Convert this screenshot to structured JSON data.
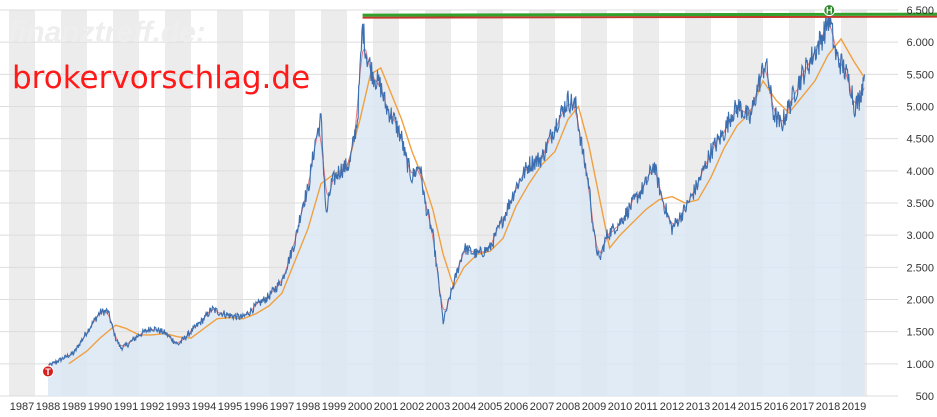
{
  "watermark": "finanztreff.de:",
  "brand": "brokervorschlag.de",
  "marker_high": "H",
  "marker_low": "T",
  "colors": {
    "price_line": "#3b6fb0",
    "short_ma": "#e0606a",
    "long_ma": "#f0a040",
    "area_fill": "#dce8f4",
    "band": "#ececec",
    "high_line": "#33a02c",
    "high_line_shadow": "#c0392b",
    "high_marker": "#2d8a2d",
    "low_marker": "#d62020",
    "brand_text": "#ff1a1a",
    "watermark": "#e6e6e6"
  },
  "chart_data": {
    "type": "line",
    "title": "",
    "xlabel": "",
    "ylabel": "",
    "x_range": [
      1988.0,
      2019.4
    ],
    "ylim": [
      500,
      6500
    ],
    "year_ticks": [
      "1987",
      "1988",
      "1989",
      "1990",
      "1991",
      "1992",
      "1993",
      "1994",
      "1995",
      "1996",
      "1997",
      "1998",
      "1999",
      "2000",
      "2001",
      "2002",
      "2003",
      "2004",
      "2005",
      "2006",
      "2007",
      "2008",
      "2009",
      "2010",
      "2011",
      "2012",
      "2013",
      "2014",
      "2015",
      "2016",
      "2017",
      "2018",
      "2019"
    ],
    "y_ticks": [
      "500",
      "1.000",
      "1.500",
      "2.000",
      "2.500",
      "3.000",
      "3.500",
      "4.000",
      "4.500",
      "5.000",
      "5.500",
      "6.000",
      "6.500"
    ],
    "y_tick_values": [
      500,
      1000,
      1500,
      2000,
      2500,
      3000,
      3500,
      4000,
      4500,
      5000,
      5500,
      6000,
      6500
    ],
    "grid": true,
    "series": [
      {
        "name": "",
        "x": [
          1988.0,
          1988.5,
          1989.0,
          1989.5,
          1990.0,
          1990.3,
          1990.6,
          1990.8,
          1991.0,
          1991.5,
          1992.0,
          1992.5,
          1993.0,
          1993.5,
          1994.0,
          1994.3,
          1994.6,
          1995.0,
          1995.5,
          1996.0,
          1996.5,
          1997.0,
          1997.5,
          1997.8,
          1998.0,
          1998.3,
          1998.5,
          1998.7,
          1998.9,
          1999.2,
          1999.6,
          1999.9,
          2000.1,
          2000.25,
          2000.5,
          2000.8,
          2001.0,
          2001.3,
          2001.6,
          2001.75,
          2002.0,
          2002.3,
          2002.5,
          2002.8,
          2003.0,
          2003.2,
          2003.5,
          2004.0,
          2004.5,
          2005.0,
          2005.5,
          2006.0,
          2006.5,
          2007.0,
          2007.5,
          2008.0,
          2008.3,
          2008.6,
          2008.8,
          2009.0,
          2009.2,
          2009.5,
          2010.0,
          2010.5,
          2011.0,
          2011.3,
          2011.6,
          2012.0,
          2012.5,
          2013.0,
          2013.5,
          2014.0,
          2014.3,
          2014.6,
          2015.0,
          2015.3,
          2015.6,
          2015.9,
          2016.2,
          2016.5,
          2016.9,
          2017.3,
          2017.8,
          2018.05,
          2018.3,
          2018.6,
          2018.9,
          2019.0,
          2019.2,
          2019.4
        ],
        "y": [
          960,
          1070,
          1170,
          1500,
          1800,
          1820,
          1400,
          1250,
          1280,
          1450,
          1560,
          1480,
          1300,
          1500,
          1700,
          1850,
          1800,
          1750,
          1720,
          1900,
          2050,
          2300,
          2900,
          3500,
          3700,
          4500,
          4800,
          3300,
          3800,
          4000,
          4100,
          4800,
          6250,
          5800,
          5500,
          5300,
          5000,
          4800,
          4500,
          4200,
          3900,
          4100,
          3500,
          3000,
          2350,
          1650,
          2100,
          2800,
          2700,
          2800,
          3250,
          3750,
          4100,
          4200,
          4700,
          5100,
          5000,
          4200,
          3800,
          3000,
          2600,
          3000,
          3200,
          3500,
          3800,
          4100,
          3600,
          3100,
          3400,
          3800,
          4300,
          4600,
          4900,
          5000,
          4800,
          5300,
          5700,
          4900,
          4700,
          5000,
          5400,
          5700,
          6100,
          6400,
          5800,
          5600,
          5300,
          5000,
          5100,
          5500
        ],
        "color": "#3b6fb0"
      },
      {
        "name": "",
        "x": [
          1988.8,
          1989.5,
          1990.0,
          1990.6,
          1991.0,
          1991.5,
          1992.0,
          1992.5,
          1993.0,
          1993.5,
          1994.0,
          1994.5,
          1995.0,
          1995.5,
          1996.0,
          1996.5,
          1997.0,
          1997.5,
          1998.0,
          1998.5,
          1999.0,
          1999.5,
          2000.0,
          2000.4,
          2000.8,
          2001.2,
          2001.6,
          2002.0,
          2002.4,
          2002.8,
          2003.2,
          2003.6,
          2004.0,
          2004.5,
          2005.0,
          2005.5,
          2006.0,
          2006.5,
          2007.0,
          2007.5,
          2008.0,
          2008.4,
          2008.8,
          2009.2,
          2009.6,
          2010.0,
          2010.5,
          2011.0,
          2011.5,
          2012.0,
          2012.5,
          2013.0,
          2013.5,
          2014.0,
          2014.5,
          2015.0,
          2015.5,
          2016.0,
          2016.5,
          2017.0,
          2017.5,
          2018.0,
          2018.5,
          2019.0,
          2019.4
        ],
        "y": [
          1000,
          1200,
          1400,
          1600,
          1550,
          1450,
          1450,
          1470,
          1420,
          1400,
          1550,
          1700,
          1720,
          1700,
          1780,
          1900,
          2100,
          2600,
          3100,
          3800,
          3950,
          4050,
          4800,
          5500,
          5600,
          5200,
          4800,
          4300,
          3900,
          3400,
          2700,
          2200,
          2500,
          2700,
          2750,
          2950,
          3450,
          3800,
          4100,
          4300,
          4800,
          5000,
          4400,
          3600,
          2800,
          3000,
          3200,
          3400,
          3550,
          3600,
          3500,
          3550,
          3900,
          4350,
          4700,
          4900,
          5400,
          5100,
          4900,
          5150,
          5400,
          5800,
          6050,
          5700,
          5450
        ],
        "color": "#f0a040"
      }
    ],
    "annotations": [
      {
        "label": "H",
        "x": 2018.05,
        "y": 6420
      },
      {
        "label": "T",
        "x": 1988.0,
        "y": 960
      }
    ],
    "high_line": 6420
  }
}
